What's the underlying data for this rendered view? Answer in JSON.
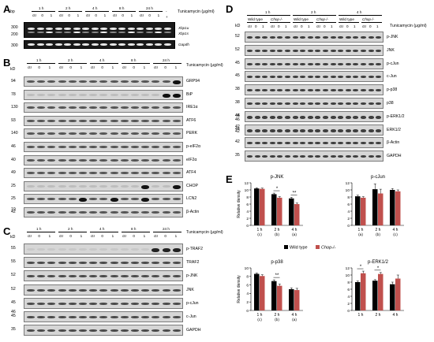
{
  "panels": {
    "A": {
      "letter": "A",
      "bp_label": "bp",
      "times": [
        "1 h",
        "2 h",
        "4 h",
        "8 h",
        "24 h"
      ],
      "lane_labels": [
        "ctr",
        "0",
        "1"
      ],
      "extra_lanes": [
        "-",
        "+"
      ],
      "treatment": "Tunicamycin (μg/ml)",
      "markers": [
        "300",
        "200",
        "300"
      ],
      "genes": [
        "Xbp1u",
        "Xbp1s",
        "Gapdh"
      ]
    },
    "B": {
      "letter": "B",
      "kd_label": "kD",
      "times": [
        "1 h",
        "2 h",
        "4 h",
        "8 h",
        "24 h"
      ],
      "lane_labels": [
        "ctr",
        "0",
        "1"
      ],
      "treatment": "Tunicamycin (μg/ml)",
      "rows": [
        {
          "kd": "94",
          "name": "GRP94"
        },
        {
          "kd": "78",
          "name": "BiP"
        },
        {
          "kd": "130",
          "name": "IRE1α"
        },
        {
          "kd": "93",
          "name": "ATF6"
        },
        {
          "kd": "140",
          "name": "PERK"
        },
        {
          "kd": "46",
          "name": "p-eIF2α"
        },
        {
          "kd": "40",
          "name": "eIF2α"
        },
        {
          "kd": "49",
          "name": "ATF4"
        },
        {
          "kd": "25",
          "name": "CHOP"
        },
        {
          "kd": "25",
          "name": "LCN2"
        },
        {
          "kd": "42",
          "name": "β-Actin"
        }
      ],
      "extra_kd": "19"
    },
    "C": {
      "letter": "C",
      "kd_label": "kD",
      "times": [
        "1 h",
        "2 h",
        "4 h",
        "8 h",
        "24 h"
      ],
      "lane_labels": [
        "ctr",
        "0",
        "1"
      ],
      "treatment": "Tunicamycin (μg/ml)",
      "rows": [
        {
          "kd": "55",
          "name": "p-TRAF2"
        },
        {
          "kd": "55",
          "name": "TRAF2"
        },
        {
          "kd": "52",
          "name": "p-JNK"
        },
        {
          "kd": "52",
          "name": "JNK"
        },
        {
          "kd": "45",
          "name": "p-cJun"
        },
        {
          "kd": "45",
          "name": "c-Jun"
        },
        {
          "kd": "35",
          "name": "GAPDH"
        }
      ],
      "extra_kd": "46"
    },
    "D": {
      "letter": "D",
      "kd_label": "kD",
      "times": [
        "1 h",
        "2 h",
        "4 h"
      ],
      "genotypes": [
        "Wild type",
        "Chop-/-"
      ],
      "lane_labels": [
        "ctr",
        "0",
        "1"
      ],
      "treatment": "Tunicamycin (μg/ml)",
      "rows": [
        {
          "kd": "52",
          "name": "p-JNK"
        },
        {
          "kd": "52",
          "name": "JNK"
        },
        {
          "kd": "45",
          "name": "p-cJun"
        },
        {
          "kd": "45",
          "name": "c-Jun"
        },
        {
          "kd": "38",
          "name": "p-p38"
        },
        {
          "kd": "38",
          "name": "p38"
        },
        {
          "kd": "44",
          "name": "p-ERK1/2"
        },
        {
          "kd": "44",
          "name": "ERK1/2"
        },
        {
          "kd": "42",
          "name": "β-Actin"
        },
        {
          "kd": "35",
          "name": "GAPDH"
        }
      ],
      "extra_kd": [
        "46",
        "46",
        "42",
        "42"
      ]
    },
    "E": {
      "letter": "E",
      "legend": {
        "wild": "Wild type",
        "chop": "Chop-/-"
      },
      "ylabel": "Relative density",
      "colors": {
        "wild": "#000000",
        "chop": "#c0504d"
      }
    }
  },
  "chart_data": [
    {
      "type": "bar",
      "title": "p-JNK",
      "categories": [
        "1 h",
        "2 h",
        "4 h"
      ],
      "sub_labels": [
        "(c)",
        "(b)",
        "(a)"
      ],
      "ylabel": "Relative density",
      "ylim": [
        0,
        12
      ],
      "yticks": [
        "0",
        "2",
        "4",
        "6",
        "8",
        "10",
        "12"
      ],
      "series": [
        {
          "name": "Wild type",
          "values": [
            10.4,
            8.8,
            7.6
          ],
          "errors": [
            0.2,
            0.3,
            0.3
          ]
        },
        {
          "name": "Chop-/-",
          "values": [
            10.3,
            7.8,
            6.0
          ],
          "errors": [
            0.2,
            0.3,
            0.3
          ]
        }
      ],
      "significance": [
        "",
        "*",
        "**"
      ]
    },
    {
      "type": "bar",
      "title": "p-cJun",
      "categories": [
        "1 h",
        "2 h",
        "4 h"
      ],
      "sub_labels": [
        "(a)",
        "(b)",
        "(c)"
      ],
      "ylabel": "",
      "ylim": [
        0,
        12
      ],
      "yticks": [
        "0",
        "2",
        "4",
        "6",
        "8",
        "10",
        "12"
      ],
      "series": [
        {
          "name": "Wild type",
          "values": [
            8.2,
            10.2,
            10.0
          ],
          "errors": [
            0.3,
            1.5,
            0.4
          ]
        },
        {
          "name": "Chop-/-",
          "values": [
            7.8,
            9.0,
            9.6
          ],
          "errors": [
            0.3,
            1.2,
            0.4
          ]
        }
      ],
      "significance": [
        "",
        "",
        ""
      ]
    },
    {
      "type": "bar",
      "title": "p-p38",
      "categories": [
        "1 h",
        "2 h",
        "4 h"
      ],
      "sub_labels": [
        "(c)",
        "(b)",
        "(a)"
      ],
      "ylabel": "Relative density",
      "ylim": [
        0,
        10
      ],
      "yticks": [
        "0",
        "2",
        "4",
        "6",
        "8",
        "10"
      ],
      "series": [
        {
          "name": "Wild type",
          "values": [
            8.6,
            6.9,
            5.0
          ],
          "errors": [
            0.2,
            0.3,
            0.3
          ]
        },
        {
          "name": "Chop-/-",
          "values": [
            8.1,
            5.8,
            4.8
          ],
          "errors": [
            0.3,
            0.4,
            0.4
          ]
        }
      ],
      "significance": [
        "",
        "**",
        ""
      ]
    },
    {
      "type": "bar",
      "title": "p-ERK1/2",
      "categories": [
        "1 h",
        "2 h",
        "4 h"
      ],
      "sub_labels": [
        "",
        "",
        ""
      ],
      "ylabel": "",
      "ylim": [
        0,
        12
      ],
      "yticks": [
        "0",
        "2",
        "4",
        "6",
        "8",
        "10",
        "12"
      ],
      "series": [
        {
          "name": "Wild type",
          "values": [
            8.0,
            8.4,
            7.4
          ],
          "errors": [
            0.3,
            0.3,
            0.6
          ]
        },
        {
          "name": "Chop-/-",
          "values": [
            10.5,
            10.3,
            9.0
          ],
          "errors": [
            0.6,
            0.4,
            1.0
          ]
        }
      ],
      "significance": [
        "*",
        "*",
        ""
      ]
    }
  ]
}
